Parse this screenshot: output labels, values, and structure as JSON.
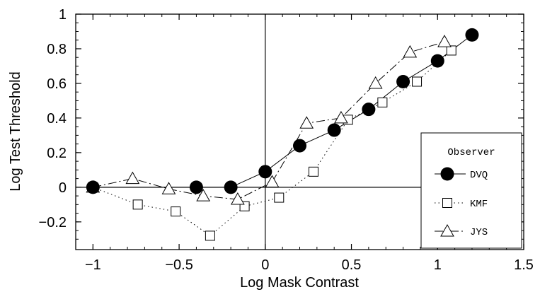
{
  "chart_data": {
    "type": "line",
    "xlabel": "Log Mask Contrast",
    "ylabel": "Log Test Threshold",
    "xlim": [
      -1.1,
      1.5
    ],
    "ylim": [
      -0.36,
      1.0
    ],
    "xticks": [
      -1,
      -0.5,
      0,
      0.5,
      1,
      1.5
    ],
    "xtick_labels": [
      "−1",
      "−0.5",
      "0",
      "0.5",
      "1",
      "1.5"
    ],
    "yticks": [
      -0.2,
      0,
      0.2,
      0.4,
      0.6,
      0.8,
      1
    ],
    "ytick_labels": [
      "−0.2",
      "0",
      "0.2",
      "0.4",
      "0.6",
      "0.8",
      "1"
    ],
    "grid": false,
    "zero_lines": true,
    "legend": {
      "title": "Observer",
      "position": "bottom-right"
    },
    "series": [
      {
        "name": "DVQ",
        "marker": "filled-circle",
        "line": "solid",
        "x": [
          -1.0,
          -0.4,
          -0.2,
          0.0,
          0.2,
          0.4,
          0.6,
          0.8,
          1.0,
          1.2
        ],
        "y": [
          0.0,
          0.0,
          0.0,
          0.09,
          0.24,
          0.33,
          0.45,
          0.61,
          0.73,
          0.88
        ]
      },
      {
        "name": "KMF",
        "marker": "open-square",
        "line": "dotted",
        "x": [
          -1.0,
          -0.74,
          -0.52,
          -0.32,
          -0.12,
          0.08,
          0.28,
          0.48,
          0.68,
          0.88,
          1.08
        ],
        "y": [
          0.0,
          -0.1,
          -0.14,
          -0.28,
          -0.11,
          -0.06,
          0.09,
          0.39,
          0.49,
          0.61,
          0.79
        ]
      },
      {
        "name": "JYS",
        "marker": "open-triangle",
        "line": "dash-dot",
        "x": [
          -1.0,
          -0.77,
          -0.56,
          -0.36,
          -0.16,
          0.04,
          0.24,
          0.44,
          0.64,
          0.84,
          1.04
        ],
        "y": [
          0.0,
          0.05,
          -0.01,
          -0.05,
          -0.07,
          0.03,
          0.37,
          0.4,
          0.6,
          0.78,
          0.84
        ]
      }
    ]
  }
}
